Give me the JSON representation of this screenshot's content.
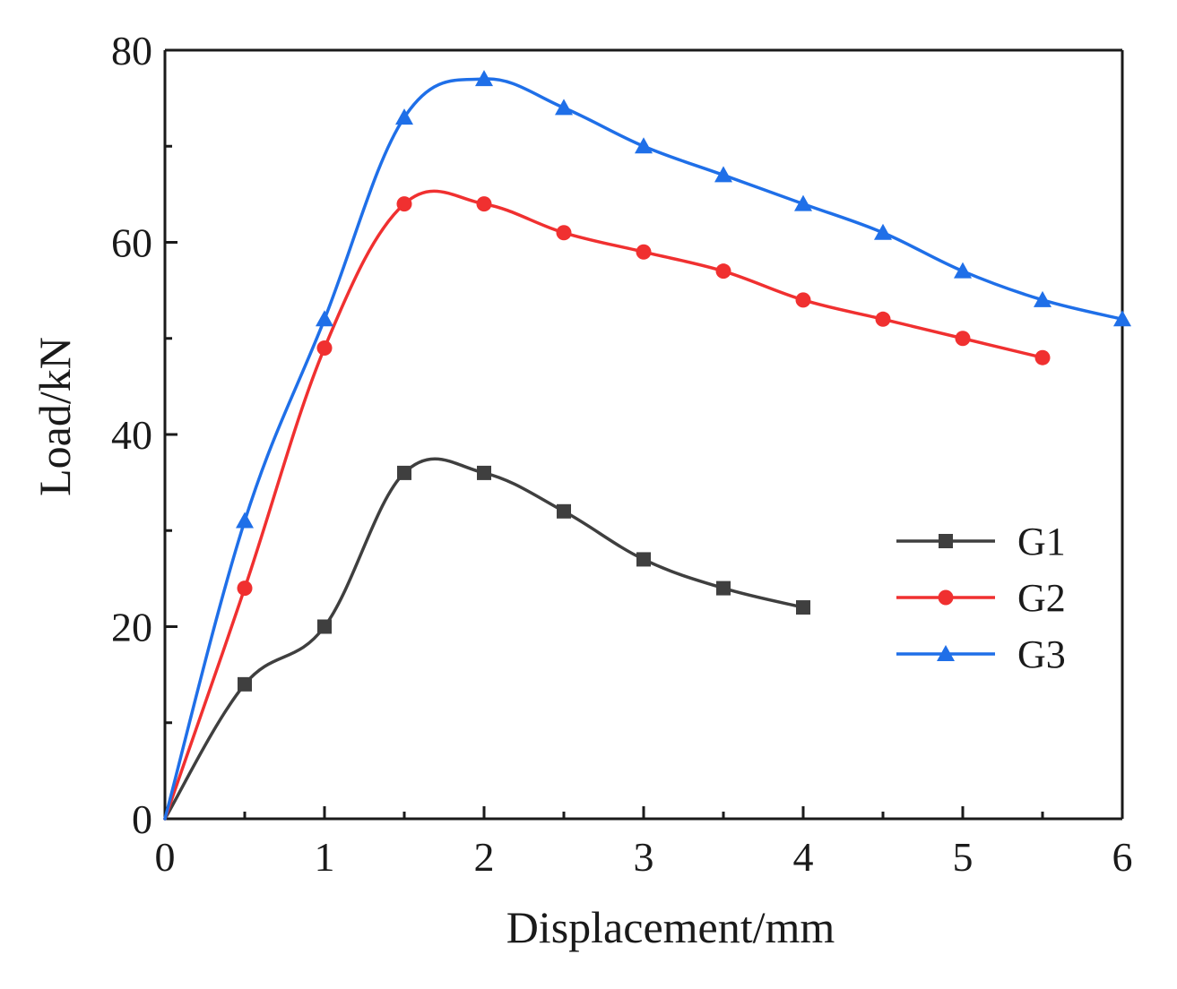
{
  "chart_data": {
    "type": "line",
    "title": "",
    "xlabel": "Displacement/mm",
    "ylabel": "Load/kN",
    "xlim": [
      0,
      6
    ],
    "ylim": [
      0,
      80
    ],
    "xticks": [
      0,
      1,
      2,
      3,
      4,
      5,
      6
    ],
    "yticks": [
      0,
      20,
      40,
      60,
      80
    ],
    "xtick_labels": [
      "0",
      "1",
      "2",
      "3",
      "4",
      "5",
      "6"
    ],
    "ytick_labels": [
      "0",
      "20",
      "40",
      "60",
      "80"
    ],
    "grid": false,
    "legend_position": "center-right",
    "series": [
      {
        "name": "G1",
        "color": "#3f3f3f",
        "marker": "square",
        "x": [
          0,
          0.5,
          1,
          1.5,
          2,
          2.5,
          3,
          3.5,
          4
        ],
        "y": [
          0,
          14,
          20,
          36,
          36,
          32,
          27,
          24,
          22
        ]
      },
      {
        "name": "G2",
        "color": "#f03030",
        "marker": "circle",
        "x": [
          0,
          0.5,
          1,
          1.5,
          2,
          2.5,
          3,
          3.5,
          4,
          4.5,
          5,
          5.5
        ],
        "y": [
          0,
          24,
          49,
          64,
          64,
          61,
          59,
          57,
          54,
          52,
          50,
          48
        ]
      },
      {
        "name": "G3",
        "color": "#1f6fe8",
        "marker": "triangle",
        "x": [
          0,
          0.5,
          1,
          1.5,
          2,
          2.5,
          3,
          3.5,
          4,
          4.5,
          5,
          5.5,
          6
        ],
        "y": [
          0,
          31,
          52,
          73,
          77,
          74,
          70,
          67,
          64,
          61,
          57,
          54,
          52
        ]
      }
    ]
  }
}
